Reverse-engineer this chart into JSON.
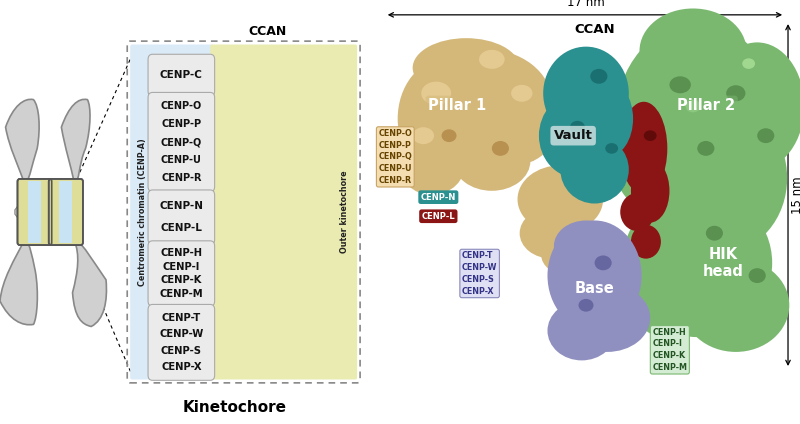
{
  "title_left": "Kinetochore",
  "ccan_label": "CCAN",
  "cenp_c": "CENP-C",
  "group1": [
    "CENP-O",
    "CENP-P",
    "CENP-Q",
    "CENP-U",
    "CENP-R"
  ],
  "group2": [
    "CENP-N",
    "CENP-L"
  ],
  "group3": [
    "CENP-H",
    "CENP-I",
    "CENP-K",
    "CENP-M"
  ],
  "group4": [
    "CENP-T",
    "CENP-W",
    "CENP-S",
    "CENP-X"
  ],
  "cenp_a_label": "Centromeric chromatin (CENP-A)",
  "outer_kinet_label": "Outer kinetochore",
  "box_bg_blue": "#daeaf7",
  "box_bg_yellow": "#eaebb0",
  "right_title": "CCAN",
  "dim_17nm": "17 nm",
  "dim_15nm": "15 nm",
  "pillar1_label": "Pillar 1",
  "pillar2_label": "Pillar 2",
  "vault_label": "Vault",
  "base_label": "Base",
  "hik_label": "HIK\nhead",
  "right_labels_tan": [
    "CENP-O",
    "CENP-P",
    "CENP-Q",
    "CENP-U",
    "CENP-R"
  ],
  "right_labels_purple": [
    "CENP-T",
    "CENP-W",
    "CENP-S",
    "CENP-X"
  ],
  "right_labels_green": [
    "CENP-H",
    "CENP-I",
    "CENP-K",
    "CENP-M"
  ],
  "color_tan": "#c8a464",
  "color_teal": "#2a9d8f",
  "color_dark_red": "#8b1515",
  "color_purple": "#8888bb",
  "color_light_green": "#80b878",
  "arm_color": "#d0d0d0",
  "arm_edge": "#888888",
  "cenp_color_yellow": "#dede98",
  "cenp_color_blue": "#c8e4f4",
  "tan_blob": "#d4b87a",
  "teal_blob": "#2a9090",
  "green_blob": "#7ab870",
  "dred_blob": "#8b1515",
  "purp_blob": "#9090c0"
}
